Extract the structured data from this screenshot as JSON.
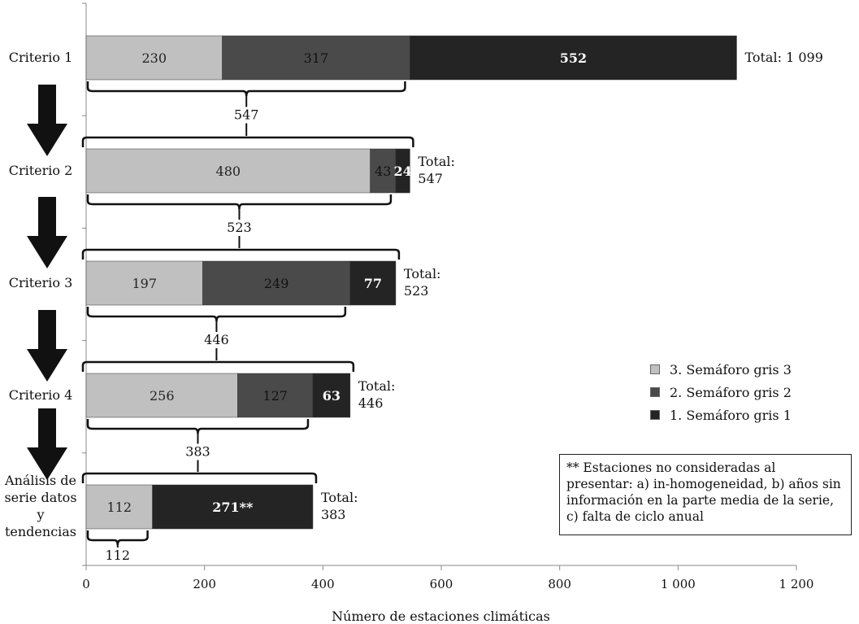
{
  "chart_data": {
    "type": "bar",
    "orientation": "horizontal",
    "stacked": true,
    "title": "",
    "xlabel": "Número de estaciones climáticas",
    "ylabel": "",
    "xlim": [
      0,
      1200
    ],
    "x_ticks": [
      0,
      200,
      400,
      600,
      800,
      1000,
      1200
    ],
    "x_tick_labels": [
      "0",
      "200",
      "400",
      "600",
      "800",
      "1 000",
      "1 200"
    ],
    "categories": [
      [
        "Criterio 1"
      ],
      [
        "Criterio 2"
      ],
      [
        "Criterio 3"
      ],
      [
        "Criterio 4"
      ],
      [
        "Análisis de",
        "serie datos",
        "y",
        "tendencias"
      ]
    ],
    "series": [
      {
        "name": "3. Semáforo gris 3",
        "color": "#c0c0c0",
        "label_color": "#222222",
        "values": [
          230,
          480,
          197,
          256,
          112
        ],
        "labels": [
          "230",
          "480",
          "197",
          "256",
          "112"
        ]
      },
      {
        "name": "2. Semáforo gris 2",
        "color": "#4a4a4a",
        "label_color": "#111111",
        "values": [
          317,
          43,
          249,
          127,
          0
        ],
        "labels": [
          "317",
          "43",
          "249",
          "127",
          ""
        ]
      },
      {
        "name": "1. Semáforo gris 1",
        "color": "#242424",
        "label_color": "#ffffff",
        "values": [
          552,
          24,
          77,
          63,
          271
        ],
        "labels": [
          "552",
          "24",
          "77",
          "63",
          "271**"
        ]
      }
    ],
    "totals": [
      [
        "Total: 1 099"
      ],
      [
        "Total:",
        "547"
      ],
      [
        "Total:",
        "523"
      ],
      [
        "Total:",
        "446"
      ],
      [
        "Total:",
        "383"
      ]
    ],
    "carry_brackets": [
      {
        "from_bar": 0,
        "label": "547"
      },
      {
        "from_bar": 1,
        "label": "523"
      },
      {
        "from_bar": 2,
        "label": "446"
      },
      {
        "from_bar": 3,
        "label": "383"
      },
      {
        "from_bar": 4,
        "label": "112"
      }
    ],
    "legend": [
      {
        "label": "3. Semáforo gris 3",
        "color": "#c0c0c0"
      },
      {
        "label": "2. Semáforo gris 2",
        "color": "#4a4a4a"
      },
      {
        "label": "1. Semáforo gris 1",
        "color": "#242424"
      }
    ],
    "note": "** Estaciones no consideradas al presentar: a) in-homogeneidad, b) años sin información en la parte media de la serie, c) falta de ciclo anual"
  }
}
